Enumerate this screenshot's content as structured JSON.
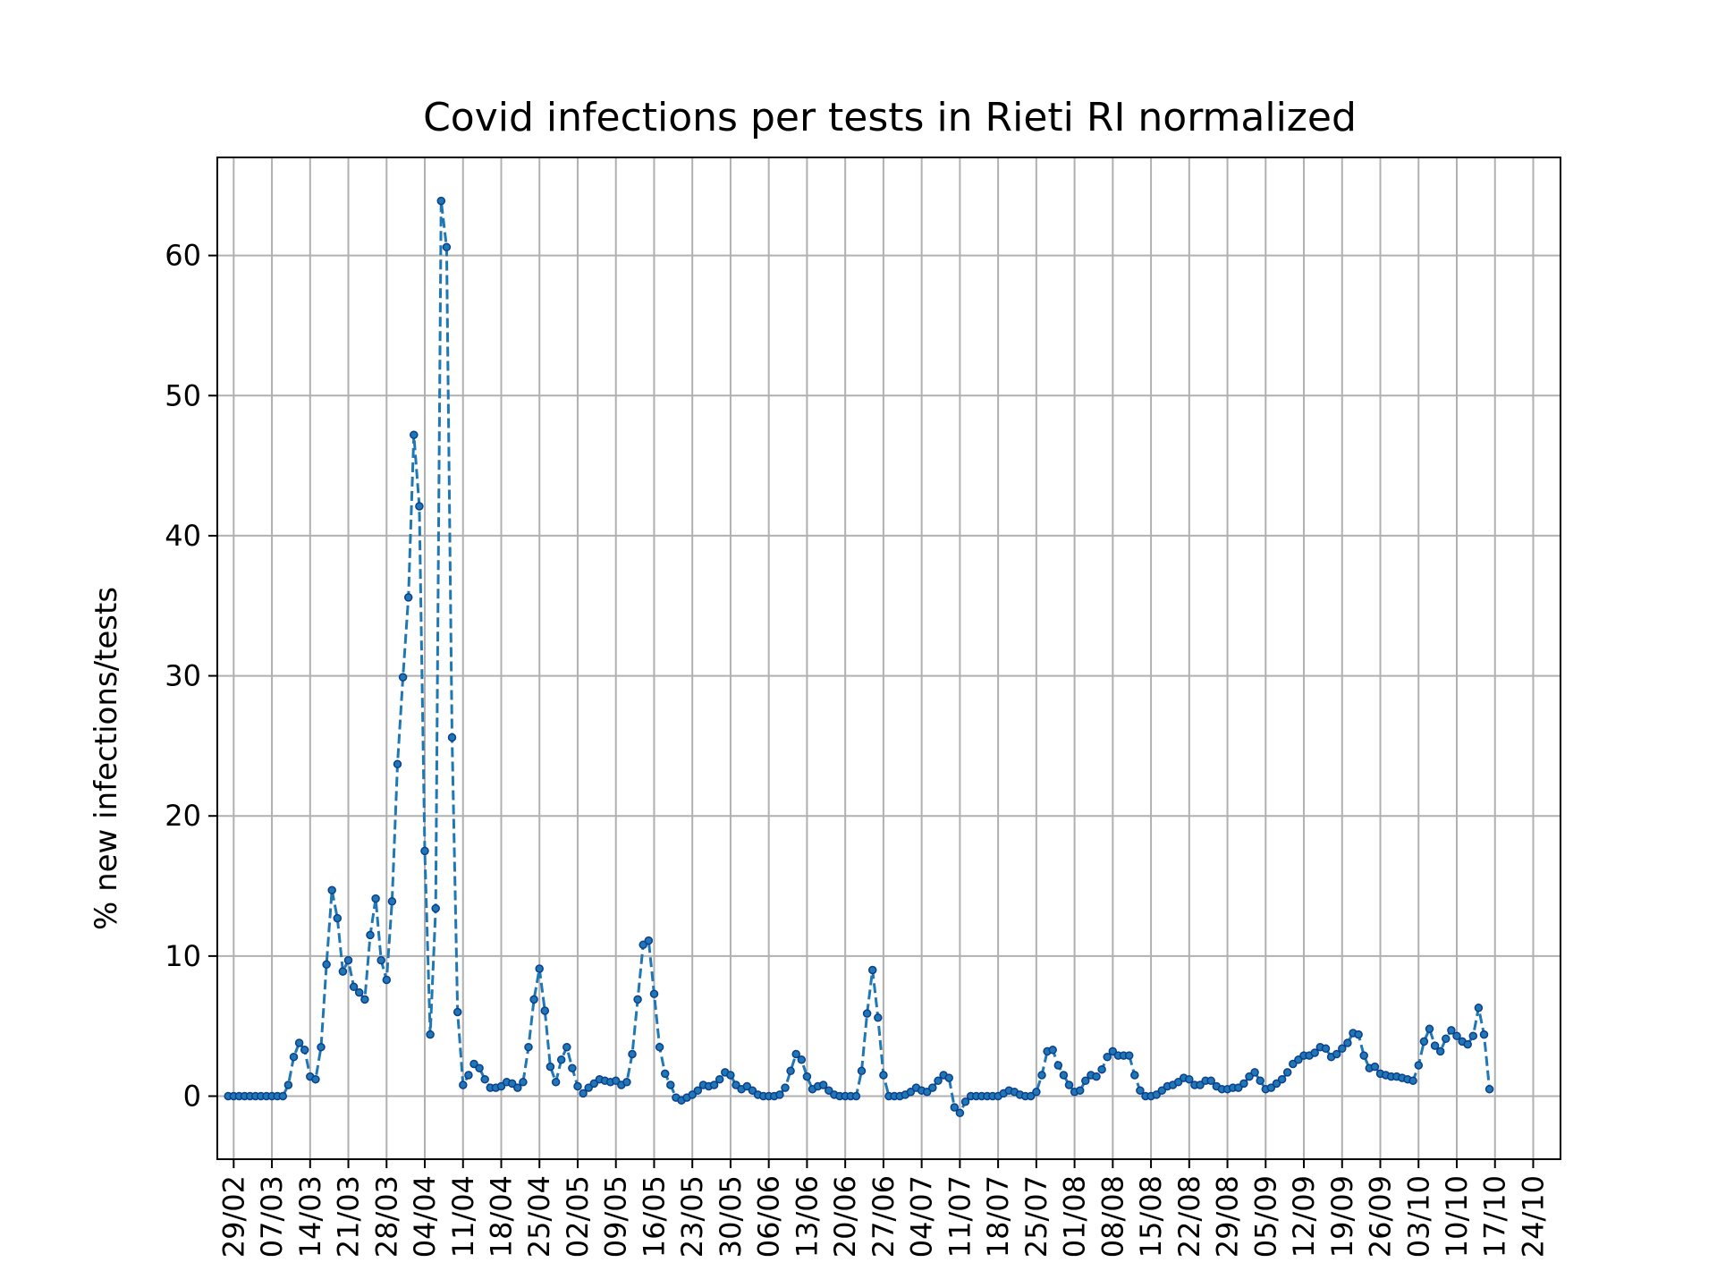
{
  "chart_data": {
    "type": "line",
    "title": "Covid infections per tests in Rieti RI normalized",
    "xlabel": "",
    "ylabel": "% new infections/tests",
    "x_start": "26/02",
    "x_tick_labels": [
      "29/02",
      "07/03",
      "14/03",
      "21/03",
      "28/03",
      "04/04",
      "11/04",
      "18/04",
      "25/04",
      "02/05",
      "09/05",
      "16/05",
      "23/05",
      "30/05",
      "06/06",
      "13/06",
      "20/06",
      "27/06",
      "04/07",
      "11/07",
      "18/07",
      "25/07",
      "01/08",
      "08/08",
      "15/08",
      "22/08",
      "29/08",
      "05/09",
      "12/09",
      "19/09",
      "26/09",
      "03/10",
      "10/10",
      "17/10",
      "24/10"
    ],
    "y_ticks": [
      0,
      10,
      20,
      30,
      40,
      50,
      60
    ],
    "ylim": [
      -4.5,
      67
    ],
    "grid": true,
    "line_style": "dashed",
    "marker": "dot",
    "color": "#1f77b4",
    "series": [
      {
        "values": [
          0,
          0,
          0,
          0,
          0,
          0,
          0,
          0,
          0,
          0,
          0,
          0.8,
          2.8,
          3.8,
          3.3,
          1.4,
          1.2,
          3.5,
          9.4,
          14.7,
          12.7,
          8.9,
          9.7,
          7.8,
          7.4,
          6.9,
          11.5,
          14.1,
          9.7,
          8.3,
          13.9,
          23.7,
          29.9,
          35.6,
          47.2,
          42.1,
          17.5,
          4.4,
          13.4,
          63.9,
          60.6,
          25.6,
          6.0,
          0.8,
          1.5,
          2.3,
          2.0,
          1.2,
          0.6,
          0.6,
          0.7,
          1.0,
          0.9,
          0.6,
          1.0,
          3.5,
          6.9,
          9.1,
          6.1,
          2.1,
          1.0,
          2.6,
          3.5,
          2.0,
          0.7,
          0.2,
          0.6,
          0.9,
          1.2,
          1.1,
          1.0,
          1.1,
          0.8,
          1.0,
          3.0,
          6.9,
          10.8,
          11.1,
          7.3,
          3.5,
          1.6,
          0.8,
          -0.1,
          -0.3,
          -0.1,
          0.1,
          0.4,
          0.8,
          0.7,
          0.8,
          1.2,
          1.7,
          1.5,
          0.8,
          0.5,
          0.7,
          0.4,
          0.1,
          0,
          0,
          0,
          0.1,
          0.6,
          1.8,
          3.0,
          2.6,
          1.4,
          0.5,
          0.7,
          0.8,
          0.4,
          0.1,
          0,
          0,
          0,
          0,
          1.8,
          5.9,
          9.0,
          5.6,
          1.5,
          0,
          0,
          0,
          0.1,
          0.3,
          0.6,
          0.4,
          0.3,
          0.6,
          1.1,
          1.5,
          1.3,
          -0.8,
          -1.2,
          -0.4,
          0,
          0,
          0,
          0,
          0,
          0,
          0.2,
          0.4,
          0.3,
          0.1,
          0,
          0,
          0.3,
          1.5,
          3.2,
          3.3,
          2.2,
          1.5,
          0.8,
          0.3,
          0.4,
          1.1,
          1.5,
          1.4,
          1.9,
          2.8,
          3.2,
          2.9,
          2.9,
          2.9,
          1.5,
          0.4,
          0,
          0,
          0.1,
          0.4,
          0.7,
          0.8,
          1.0,
          1.3,
          1.2,
          0.8,
          0.8,
          1.1,
          1.1,
          0.7,
          0.5,
          0.5,
          0.6,
          0.6,
          0.9,
          1.4,
          1.7,
          1.1,
          0.5,
          0.6,
          0.9,
          1.2,
          1.7,
          2.3,
          2.6,
          2.9,
          2.9,
          3.1,
          3.5,
          3.4,
          2.8,
          3.0,
          3.4,
          3.8,
          4.5,
          4.4,
          2.9,
          2.0,
          2.1,
          1.6,
          1.5,
          1.4,
          1.4,
          1.3,
          1.2,
          1.1,
          2.2,
          3.9,
          4.8,
          3.6,
          3.2,
          4.1,
          4.7,
          4.3,
          3.9,
          3.7,
          4.3,
          6.3,
          4.4,
          0.5
        ]
      }
    ]
  }
}
